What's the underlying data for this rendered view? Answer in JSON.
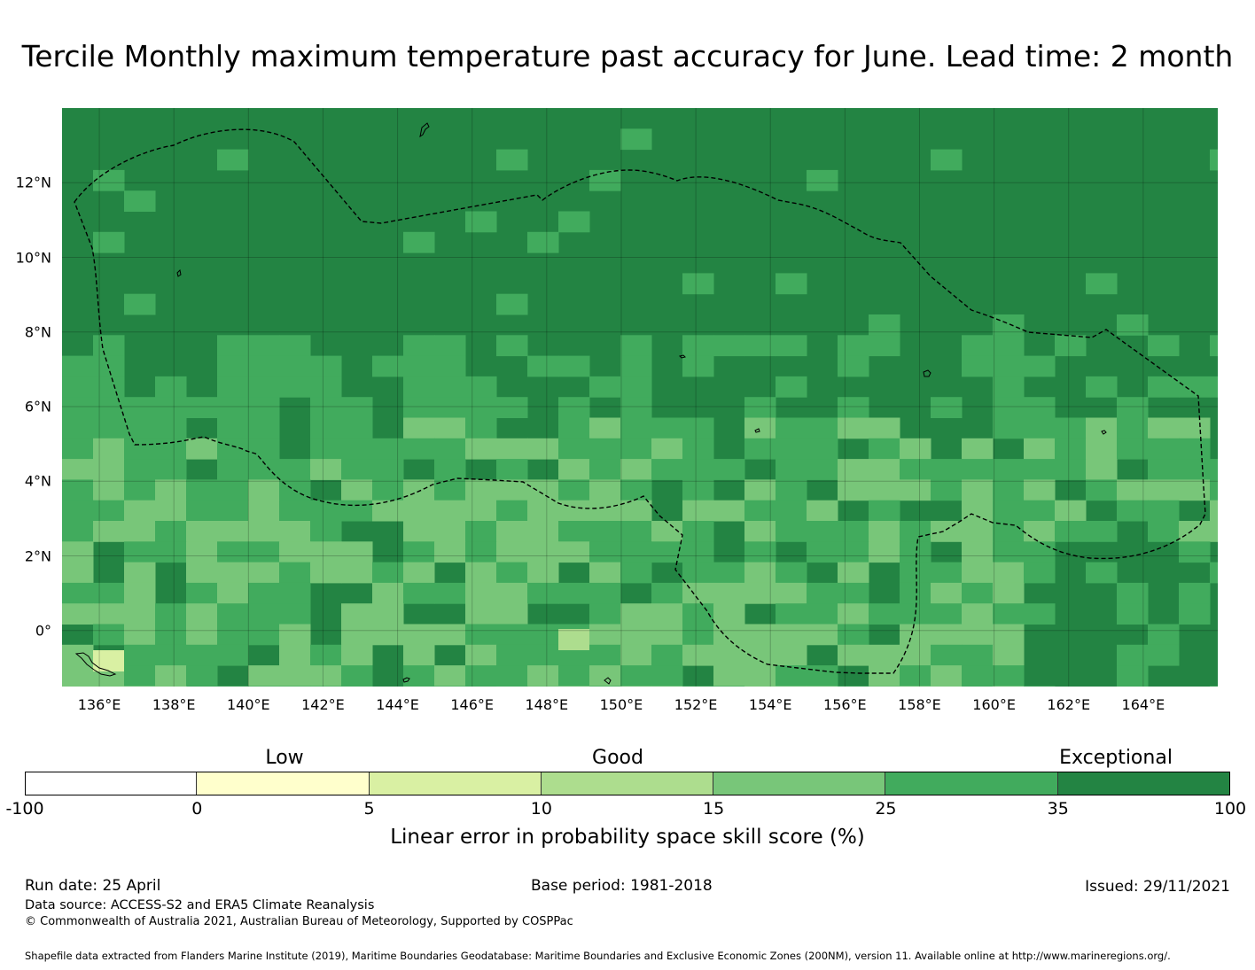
{
  "title": "Tercile Monthly maximum temperature past accuracy for June. Lead time: 2 month",
  "map": {
    "lat_labels": [
      "12°N",
      "10°N",
      "8°N",
      "6°N",
      "4°N",
      "2°N",
      "0°"
    ],
    "lat_values": [
      12,
      10,
      8,
      6,
      4,
      2,
      0
    ],
    "lon_labels": [
      "136°E",
      "138°E",
      "140°E",
      "142°E",
      "144°E",
      "146°E",
      "148°E",
      "150°E",
      "152°E",
      "154°E",
      "156°E",
      "158°E",
      "160°E",
      "162°E",
      "164°E"
    ],
    "lon_values": [
      136,
      138,
      140,
      142,
      144,
      146,
      148,
      150,
      152,
      154,
      156,
      158,
      160,
      162,
      164
    ],
    "lon_range": [
      135,
      166
    ],
    "lat_range": [
      -1.5,
      14
    ],
    "background_color": "#238443",
    "grid": true,
    "boundary_style": "dashed"
  },
  "colorbar": {
    "qualitative": {
      "low": "Low",
      "good": "Good",
      "exceptional": "Exceptional"
    },
    "ticks": [
      "-100",
      "0",
      "5",
      "10",
      "15",
      "25",
      "35",
      "100"
    ],
    "colors": [
      "#ffffff",
      "#ffffcc",
      "#d9f0a3",
      "#addd8e",
      "#78c679",
      "#41ab5d",
      "#238443"
    ],
    "label": "Linear error in probability space skill score (%)"
  },
  "footer": {
    "run_date": "Run date: 25 April",
    "base_period": "Base period: 1981-2018",
    "issued": "Issued: 29/11/2021",
    "data_source": "Data source: ACCESS-S2 and ERA5 Climate Reanalysis",
    "copyright": "© Commonwealth of Australia 2021, Australian Bureau of Meteorology, Supported by COSPPac",
    "shapefile": "Shapefile data extracted from Flanders Marine Institute (2019), Maritime Boundaries Geodatabase: Maritime Boundaries and Exclusive Economic Zones (200NM), version 11. Available online at http://www.marineregions.org/."
  }
}
